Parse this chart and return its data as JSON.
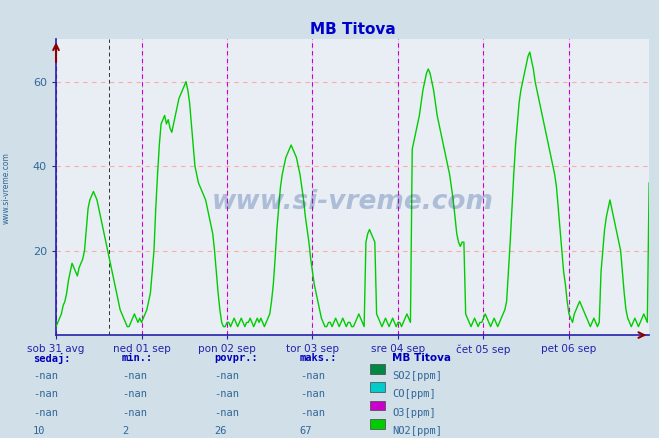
{
  "title": "MB Titova",
  "title_color": "#0000cc",
  "bg_color": "#d0dfe8",
  "plot_bg_color": "#e8eef4",
  "grid_h_color": "#ffaaaa",
  "grid_v_color": "#bbbbbb",
  "axis_color": "#2222aa",
  "ylim": [
    0,
    70
  ],
  "yticks": [
    20,
    40,
    60
  ],
  "xlabels": [
    "sob 31 avg",
    "ned 01 sep",
    "pon 02 sep",
    "tor 03 sep",
    "sre 04 sep",
    "čet 05 sep",
    "pet 06 sep"
  ],
  "day_positions": [
    0,
    48,
    96,
    144,
    192,
    240,
    288
  ],
  "magenta_vlines": [
    0,
    48,
    96,
    144,
    192,
    240,
    288
  ],
  "black_vline": 30,
  "total_points": 336,
  "line_color": "#00cc00",
  "line_width": 1.0,
  "watermark": "www.si-vreme.com",
  "table_headers": [
    "sedaj:",
    "min.:",
    "povpr.:",
    "maks.:"
  ],
  "header_color": "#0000bb",
  "legend_title": "MB Titova",
  "species": [
    "SO2[ppm]",
    "CO[ppm]",
    "O3[ppm]",
    "NO2[ppm]"
  ],
  "species_colors": [
    "#008844",
    "#00cccc",
    "#cc00cc",
    "#00cc00"
  ],
  "species_values": [
    [
      "-nan",
      "-nan",
      "-nan",
      "-nan"
    ],
    [
      "-nan",
      "-nan",
      "-nan",
      "-nan"
    ],
    [
      "-nan",
      "-nan",
      "-nan",
      "-nan"
    ],
    [
      "10",
      "2",
      "26",
      "67"
    ]
  ],
  "no2": [
    2,
    3,
    4,
    5,
    7,
    8,
    10,
    13,
    15,
    17,
    16,
    15,
    14,
    16,
    17,
    18,
    20,
    25,
    30,
    32,
    33,
    34,
    33,
    32,
    30,
    28,
    26,
    24,
    22,
    20,
    18,
    16,
    14,
    12,
    10,
    8,
    6,
    5,
    4,
    3,
    2,
    2,
    3,
    4,
    5,
    4,
    3,
    4,
    3,
    4,
    5,
    6,
    8,
    10,
    15,
    20,
    30,
    38,
    45,
    50,
    51,
    52,
    50,
    51,
    49,
    48,
    50,
    52,
    54,
    56,
    57,
    58,
    59,
    60,
    58,
    55,
    50,
    45,
    40,
    38,
    36,
    35,
    34,
    33,
    32,
    30,
    28,
    26,
    24,
    20,
    15,
    10,
    6,
    3,
    2,
    2,
    3,
    3,
    2,
    3,
    4,
    3,
    2,
    3,
    4,
    3,
    2,
    3,
    3,
    4,
    3,
    2,
    3,
    4,
    3,
    4,
    3,
    2,
    3,
    4,
    5,
    8,
    12,
    18,
    25,
    30,
    35,
    38,
    40,
    42,
    43,
    44,
    45,
    44,
    43,
    42,
    40,
    38,
    35,
    32,
    28,
    25,
    22,
    18,
    15,
    12,
    10,
    8,
    6,
    4,
    3,
    2,
    2,
    3,
    3,
    2,
    3,
    4,
    3,
    2,
    3,
    4,
    3,
    2,
    3,
    3,
    2,
    2,
    3,
    4,
    5,
    4,
    3,
    2,
    22,
    24,
    25,
    24,
    23,
    22,
    5,
    4,
    3,
    2,
    3,
    4,
    3,
    2,
    3,
    4,
    3,
    2,
    3,
    3,
    2,
    3,
    4,
    5,
    4,
    3,
    44,
    46,
    48,
    50,
    52,
    55,
    58,
    60,
    62,
    63,
    62,
    60,
    58,
    55,
    52,
    50,
    48,
    46,
    44,
    42,
    40,
    38,
    35,
    32,
    28,
    24,
    22,
    21,
    22,
    22,
    5,
    4,
    3,
    2,
    3,
    4,
    3,
    2,
    3,
    3,
    4,
    5,
    4,
    3,
    2,
    3,
    4,
    3,
    2,
    3,
    4,
    5,
    6,
    8,
    15,
    22,
    30,
    38,
    45,
    50,
    55,
    58,
    60,
    62,
    64,
    66,
    67,
    65,
    63,
    60,
    58,
    56,
    54,
    52,
    50,
    48,
    46,
    44,
    42,
    40,
    38,
    35,
    30,
    25,
    20,
    15,
    12,
    8,
    5,
    4,
    3,
    5,
    6,
    7,
    8,
    7,
    6,
    5,
    4,
    3,
    2,
    3,
    4,
    3,
    2,
    3,
    15,
    20,
    25,
    28,
    30,
    32,
    30,
    28,
    26,
    24,
    22,
    20,
    15,
    10,
    6,
    4,
    3,
    2,
    3,
    4,
    3,
    2,
    3,
    4,
    5,
    4,
    3,
    36
  ]
}
